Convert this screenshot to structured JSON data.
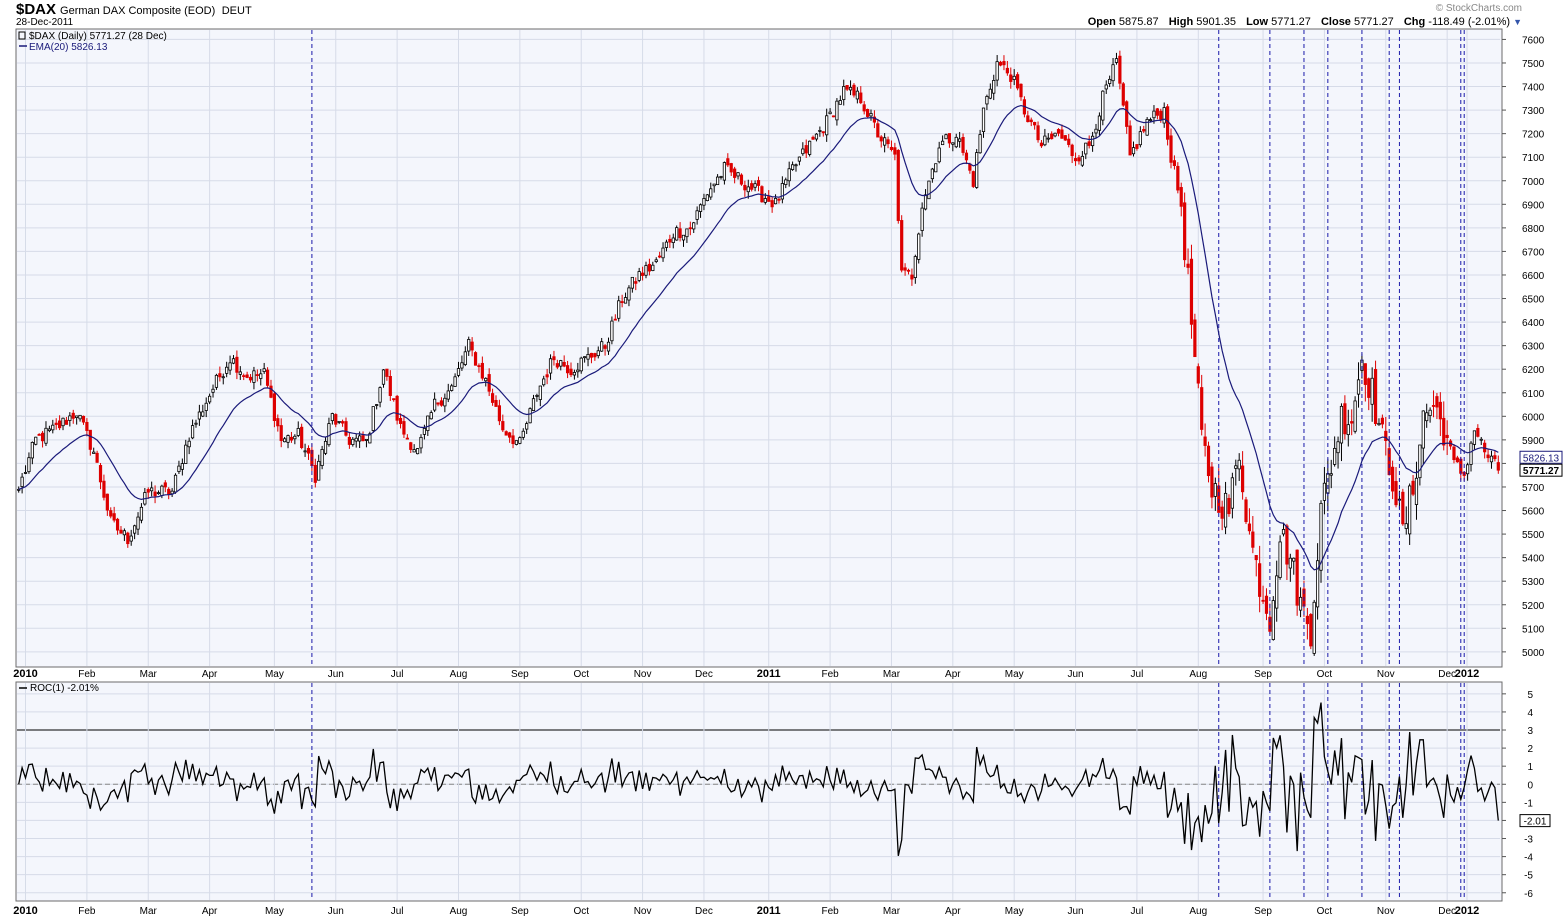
{
  "header": {
    "symbol": "$DAX",
    "name": "German DAX Composite (EOD)",
    "exchange": "DEUT",
    "date": "28-Dec-2011",
    "copyright": "© StockCharts.com",
    "open_label": "Open",
    "open": "5875.87",
    "high_label": "High",
    "high": "5901.35",
    "low_label": "Low",
    "low": "5771.27",
    "close_label": "Close",
    "close": "5771.27",
    "chg_label": "Chg",
    "chg": "-118.49 (-2.01%)"
  },
  "legend": {
    "price": "$DAX (Daily) 5771.27 (28 Dec)",
    "ema": "EMA(20) 5826.13",
    "roc": "ROC(1) -2.01%"
  },
  "colors": {
    "up": "#000000",
    "down": "#dd0000",
    "ema": "#1a1a7a",
    "marker": "#1a1aaa",
    "bg": "#f4f6fc",
    "grid": "#d6dbe8"
  },
  "chart_data": [
    {
      "type": "line",
      "title": "$DAX (Daily) 5771.27 (28 Dec)",
      "series_kind": "candlestick",
      "ylim": [
        4940,
        7640
      ],
      "y_ticks": [
        5000,
        5100,
        5200,
        5300,
        5400,
        5500,
        5600,
        5700,
        5800,
        5900,
        6000,
        6100,
        6200,
        6300,
        6400,
        6500,
        6600,
        6700,
        6800,
        6900,
        7000,
        7100,
        7200,
        7300,
        7400,
        7500,
        7600
      ],
      "x_months": [
        "2010",
        "Feb",
        "Mar",
        "Apr",
        "May",
        "Jun",
        "Jul",
        "Aug",
        "Sep",
        "Oct",
        "Nov",
        "Dec",
        "2011",
        "Feb",
        "Mar",
        "Apr",
        "May",
        "Jun",
        "Jul",
        "Aug",
        "Sep",
        "Oct",
        "Nov",
        "Dec",
        "2012"
      ],
      "close_anchors": [
        [
          0,
          5690
        ],
        [
          5,
          5900
        ],
        [
          11,
          5950
        ],
        [
          17,
          6020
        ],
        [
          22,
          5850
        ],
        [
          27,
          5550
        ],
        [
          32,
          5480
        ],
        [
          38,
          5680
        ],
        [
          45,
          5680
        ],
        [
          50,
          5920
        ],
        [
          57,
          6120
        ],
        [
          62,
          6250
        ],
        [
          67,
          6170
        ],
        [
          72,
          6180
        ],
        [
          77,
          5900
        ],
        [
          82,
          5920
        ],
        [
          87,
          5750
        ],
        [
          92,
          6000
        ],
        [
          97,
          5900
        ],
        [
          102,
          5890
        ],
        [
          107,
          6200
        ],
        [
          112,
          5950
        ],
        [
          117,
          5850
        ],
        [
          122,
          6050
        ],
        [
          127,
          6120
        ],
        [
          132,
          6300
        ],
        [
          137,
          6150
        ],
        [
          142,
          5950
        ],
        [
          147,
          5880
        ],
        [
          152,
          6100
        ],
        [
          157,
          6250
        ],
        [
          162,
          6200
        ],
        [
          167,
          6250
        ],
        [
          172,
          6300
        ],
        [
          177,
          6500
        ],
        [
          182,
          6600
        ],
        [
          187,
          6650
        ],
        [
          192,
          6780
        ],
        [
          197,
          6800
        ],
        [
          202,
          6950
        ],
        [
          207,
          7050
        ],
        [
          212,
          7000
        ],
        [
          217,
          6950
        ],
        [
          222,
          6900
        ],
        [
          227,
          7050
        ],
        [
          232,
          7150
        ],
        [
          237,
          7250
        ],
        [
          242,
          7380
        ],
        [
          247,
          7350
        ],
        [
          252,
          7200
        ],
        [
          257,
          7100
        ],
        [
          259,
          6600
        ],
        [
          262,
          6600
        ],
        [
          265,
          6900
        ],
        [
          270,
          7150
        ],
        [
          275,
          7200
        ],
        [
          280,
          7000
        ],
        [
          283,
          7300
        ],
        [
          287,
          7500
        ],
        [
          291,
          7450
        ],
        [
          295,
          7300
        ],
        [
          300,
          7150
        ],
        [
          305,
          7200
        ],
        [
          310,
          7100
        ],
        [
          314,
          7150
        ],
        [
          318,
          7350
        ],
        [
          322,
          7500
        ],
        [
          326,
          7100
        ],
        [
          331,
          7250
        ],
        [
          336,
          7300
        ],
        [
          338,
          7100
        ],
        [
          341,
          6900
        ],
        [
          344,
          6400
        ],
        [
          347,
          5900
        ],
        [
          350,
          5700
        ],
        [
          355,
          5600
        ],
        [
          358,
          5850
        ],
        [
          361,
          5500
        ],
        [
          364,
          5300
        ],
        [
          367,
          5150
        ],
        [
          370,
          5500
        ],
        [
          373,
          5400
        ],
        [
          376,
          5200
        ],
        [
          379,
          5100
        ],
        [
          382,
          5600
        ],
        [
          385,
          5800
        ],
        [
          388,
          6000
        ],
        [
          391,
          6000
        ],
        [
          394,
          6250
        ],
        [
          397,
          6100
        ],
        [
          400,
          5900
        ],
        [
          403,
          5750
        ],
        [
          406,
          5500
        ],
        [
          409,
          5700
        ],
        [
          412,
          6000
        ],
        [
          415,
          6050
        ],
        [
          418,
          5950
        ],
        [
          421,
          5800
        ],
        [
          424,
          5750
        ],
        [
          427,
          5950
        ],
        [
          430,
          5850
        ],
        [
          434,
          5771.27
        ]
      ],
      "n_days": 435,
      "ema": {
        "name": "EMA(20)",
        "last": 5826.13,
        "period": 20
      },
      "last_tags": [
        "5826.13",
        "5771.27"
      ]
    },
    {
      "type": "line",
      "title": "ROC(1) -2.01%",
      "ylim": [
        -6.4,
        5.6
      ],
      "y_ticks": [
        -6,
        -5,
        -4,
        -3,
        -2,
        -1,
        0,
        1,
        2,
        3,
        4,
        5
      ],
      "threshold": 3,
      "last_tag": "-2.01",
      "x_months": [
        "2010",
        "Feb",
        "Mar",
        "Apr",
        "May",
        "Jun",
        "Jul",
        "Aug",
        "Sep",
        "Oct",
        "Nov",
        "Dec",
        "2011",
        "Feb",
        "Mar",
        "Apr",
        "May",
        "Jun",
        "Jul",
        "Aug",
        "Sep",
        "Oct",
        "Nov",
        "Dec",
        "2012"
      ]
    }
  ],
  "markers": {
    "day_indices": [
      86,
      352,
      367,
      377,
      384,
      394,
      402,
      405,
      423,
      424
    ]
  }
}
